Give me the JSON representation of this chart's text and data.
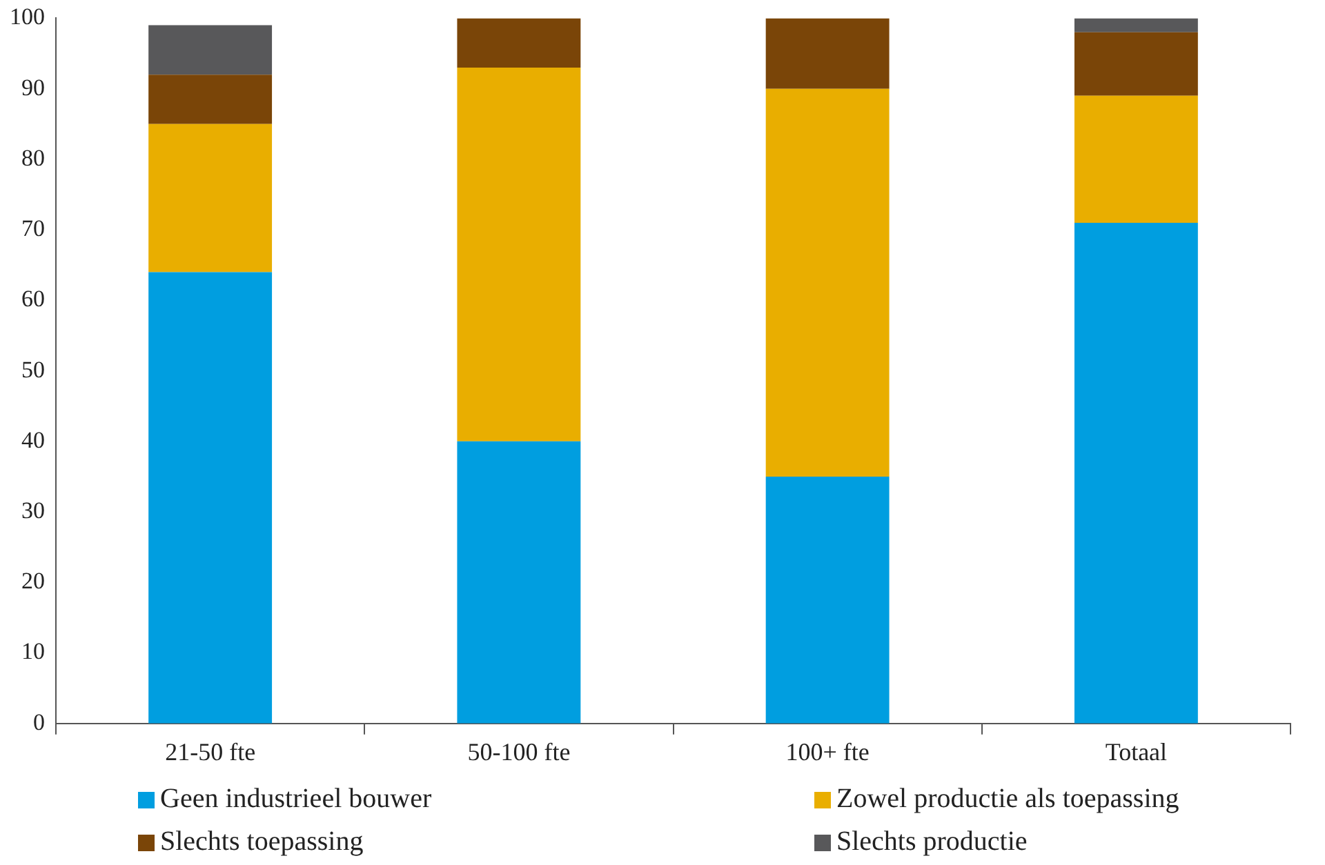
{
  "chart_data": {
    "type": "bar",
    "stacked": true,
    "categories": [
      "21-50 fte",
      "50-100 fte",
      "100+ fte",
      "Totaal"
    ],
    "series": [
      {
        "name": "Geen industrieel bouwer",
        "color": "#009ee0",
        "values": [
          64,
          40,
          35,
          71
        ]
      },
      {
        "name": "Zowel productie als toepassing",
        "color": "#e9ae00",
        "values": [
          21,
          53,
          55,
          18
        ]
      },
      {
        "name": "Slechts toepassing",
        "color": "#7a4508",
        "values": [
          7,
          7,
          10,
          9
        ]
      },
      {
        "name": "Slechts productie",
        "color": "#58585a",
        "values": [
          7,
          0,
          0,
          2
        ]
      }
    ],
    "ylim": [
      0,
      100
    ],
    "yticks": [
      0,
      10,
      20,
      30,
      40,
      50,
      60,
      70,
      80,
      90,
      100
    ],
    "legend": "bottom"
  }
}
